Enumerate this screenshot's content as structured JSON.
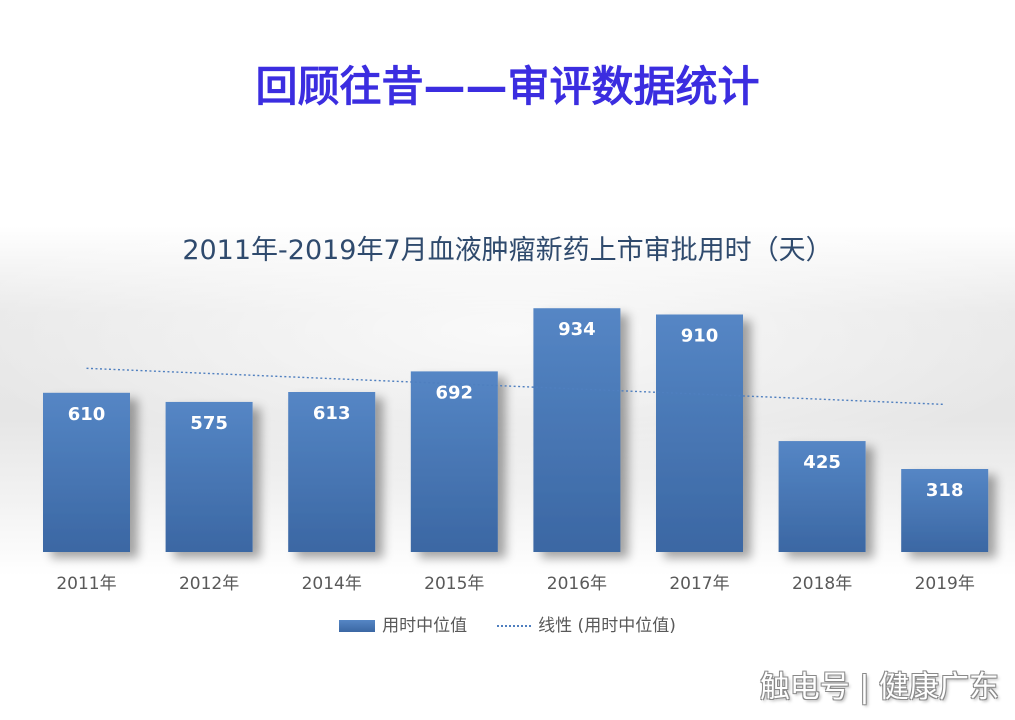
{
  "page": {
    "title": "回顾往昔——审评数据统计",
    "watermark": "触电号 | 健康广东"
  },
  "colors": {
    "page_title": "#3b2de0",
    "chart_title": "#2f4a6d",
    "bar": "#4a7ab8",
    "trendline": "#4f7fbf",
    "data_label": "#ffffff",
    "axis_label": "#595959"
  },
  "chart_data": {
    "type": "bar",
    "title": "2011年-2019年7月血液肿瘤新药上市审批用时（天）",
    "categories": [
      "2011年",
      "2012年",
      "2014年",
      "2015年",
      "2016年",
      "2017年",
      "2018年",
      "2019年"
    ],
    "series": [
      {
        "name": "用时中位值",
        "values": [
          610,
          575,
          613,
          692,
          934,
          910,
          425,
          318
        ]
      }
    ],
    "trendline": {
      "type": "linear",
      "name": "线性 (用时中位值)"
    },
    "data_labels": true,
    "xlabel": "",
    "ylabel": "",
    "ylim": [
      0,
      1000
    ],
    "y_axis_visible": false,
    "grid": false,
    "legend": "bottom"
  }
}
